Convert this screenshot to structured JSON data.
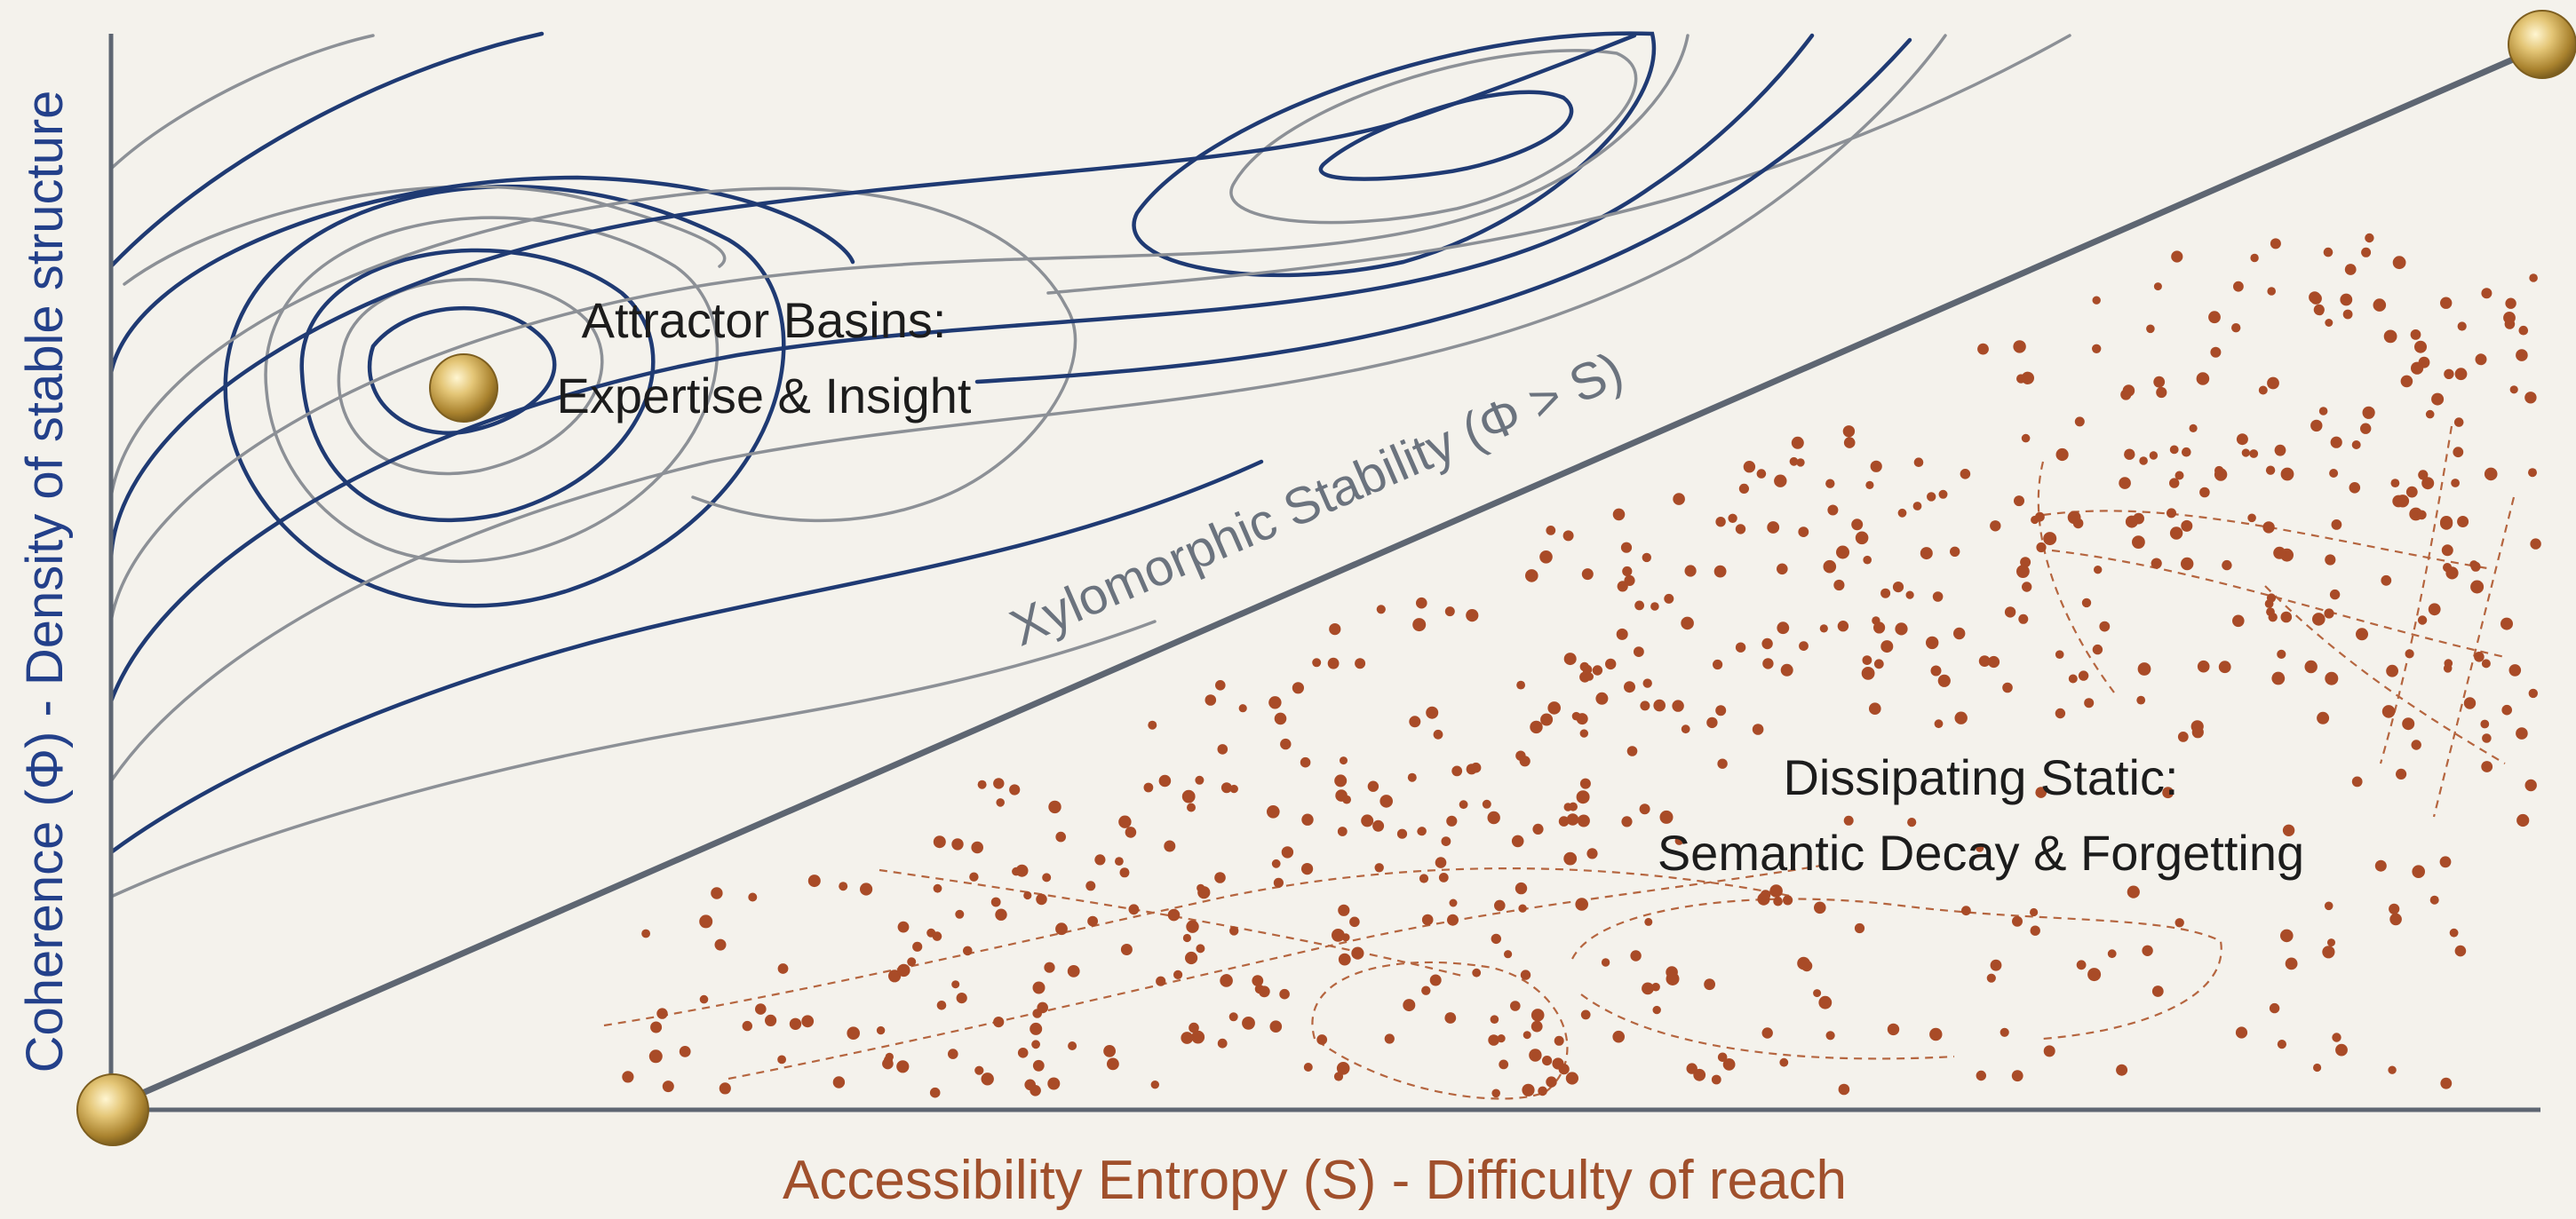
{
  "axes": {
    "x_label": "Accessibility Entropy (S) - Difficulty of reach",
    "y_label": "Coherence (Φ) - Density of stable structure"
  },
  "diagonal": {
    "label": "Xylomorphic Stability (Φ > S)"
  },
  "regions": {
    "attractor": {
      "title_line1": "Attractor Basins:",
      "title_line2": "Expertise & Insight"
    },
    "static": {
      "title_line1": "Dissipating Static:",
      "title_line2": "Semantic Decay & Forgetting"
    }
  },
  "colors": {
    "background": "#f4f2ec",
    "axis": "#5e6672",
    "contour_dark": "#1f3a73",
    "contour_light": "#8c9096",
    "dots": "#a94b27",
    "x_label": "#a0502c",
    "y_label": "#23408a",
    "gold": "#c9a548"
  },
  "icons": {
    "origin": "gold-disc-icon",
    "corner": "gold-disc-icon",
    "basin": "gold-disc-icon"
  }
}
